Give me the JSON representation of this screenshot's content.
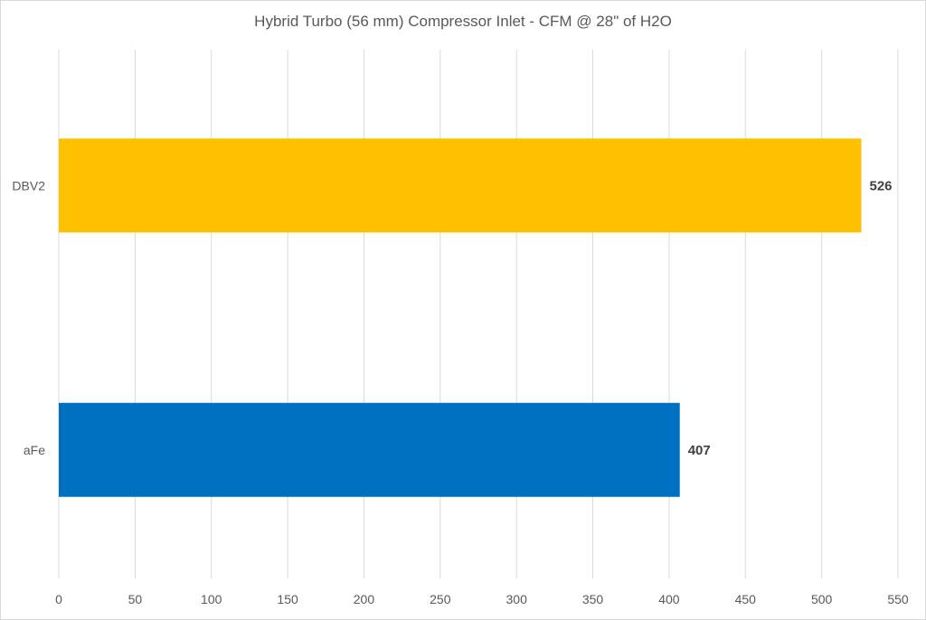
{
  "chart_data": {
    "type": "bar",
    "orientation": "horizontal",
    "title": "Hybrid Turbo (56 mm) Compressor Inlet - CFM @ 28\" of H2O",
    "xlabel": "",
    "ylabel": "",
    "xlim": [
      0,
      550
    ],
    "x_ticks": [
      0,
      50,
      100,
      150,
      200,
      250,
      300,
      350,
      400,
      450,
      500,
      550
    ],
    "grid": true,
    "legend": "none",
    "categories": [
      "DBV2",
      "aFe"
    ],
    "values": [
      526,
      407
    ],
    "colors": [
      "#ffc000",
      "#0070c0"
    ],
    "data_labels": [
      "526",
      "407"
    ]
  }
}
